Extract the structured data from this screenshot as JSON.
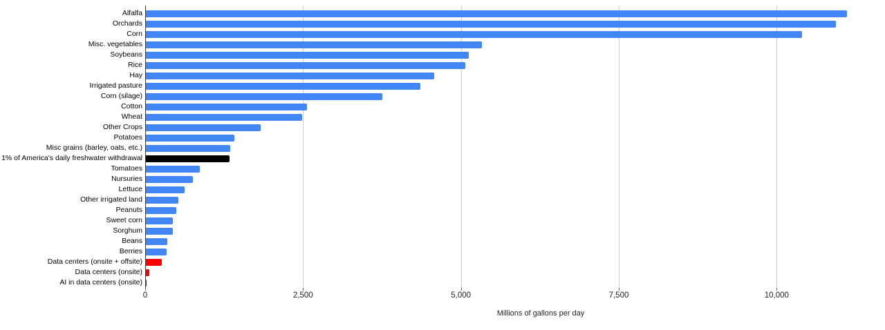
{
  "chart_data": {
    "type": "bar",
    "orientation": "horizontal",
    "title": "",
    "xlabel": "Millions of gallons per day",
    "ylabel": "",
    "xlim": [
      0,
      11700
    ],
    "x_ticks": [
      0,
      2500,
      5000,
      7500,
      10000
    ],
    "x_tick_labels": [
      "0",
      "2,500",
      "5,000",
      "7,500",
      "10,000"
    ],
    "grid": true,
    "legend": "none",
    "categories": [
      "Alfalfa",
      "Orchards",
      "Corn",
      "Misc. vegetables",
      "Soybeans",
      "Rice",
      "Hay",
      "Irrigated pasture",
      "Corn (silage)",
      "Cotton",
      "Wheat",
      "Other Crops",
      "Potatoes",
      "Misc grains (barley, oats, etc.)",
      "1% of America's daily freshwater withdrawal",
      "Tomatoes",
      "Nursuries",
      "Lettuce",
      "Other irrigated land",
      "Peanuts",
      "Sweet corn",
      "Sorghum",
      "Beans",
      "Berries",
      "Data centers (onsite + offsite)",
      "Data centers (onsite)",
      "AI in data centers (onsite)"
    ],
    "values": [
      11100,
      10930,
      10390,
      5320,
      5110,
      5060,
      4570,
      4350,
      3750,
      2550,
      2480,
      1820,
      1400,
      1340,
      1330,
      850,
      750,
      610,
      520,
      480,
      425,
      430,
      340,
      330,
      255,
      50,
      12
    ],
    "bar_colors": [
      "#4285f4",
      "#4285f4",
      "#4285f4",
      "#4285f4",
      "#4285f4",
      "#4285f4",
      "#4285f4",
      "#4285f4",
      "#4285f4",
      "#4285f4",
      "#4285f4",
      "#4285f4",
      "#4285f4",
      "#4285f4",
      "#000000",
      "#4285f4",
      "#4285f4",
      "#4285f4",
      "#4285f4",
      "#4285f4",
      "#4285f4",
      "#4285f4",
      "#4285f4",
      "#4285f4",
      "#ff0000",
      "#ff0000",
      "#ff0000"
    ]
  },
  "colors": {
    "bar_default": "#4285f4",
    "bar_highlight_black": "#000000",
    "bar_highlight_red": "#ff0000",
    "gridline": "#cccccc",
    "axis_baseline": "#333333",
    "tick_text": "#222222",
    "label_text": "#000000",
    "background": "#ffffff"
  }
}
